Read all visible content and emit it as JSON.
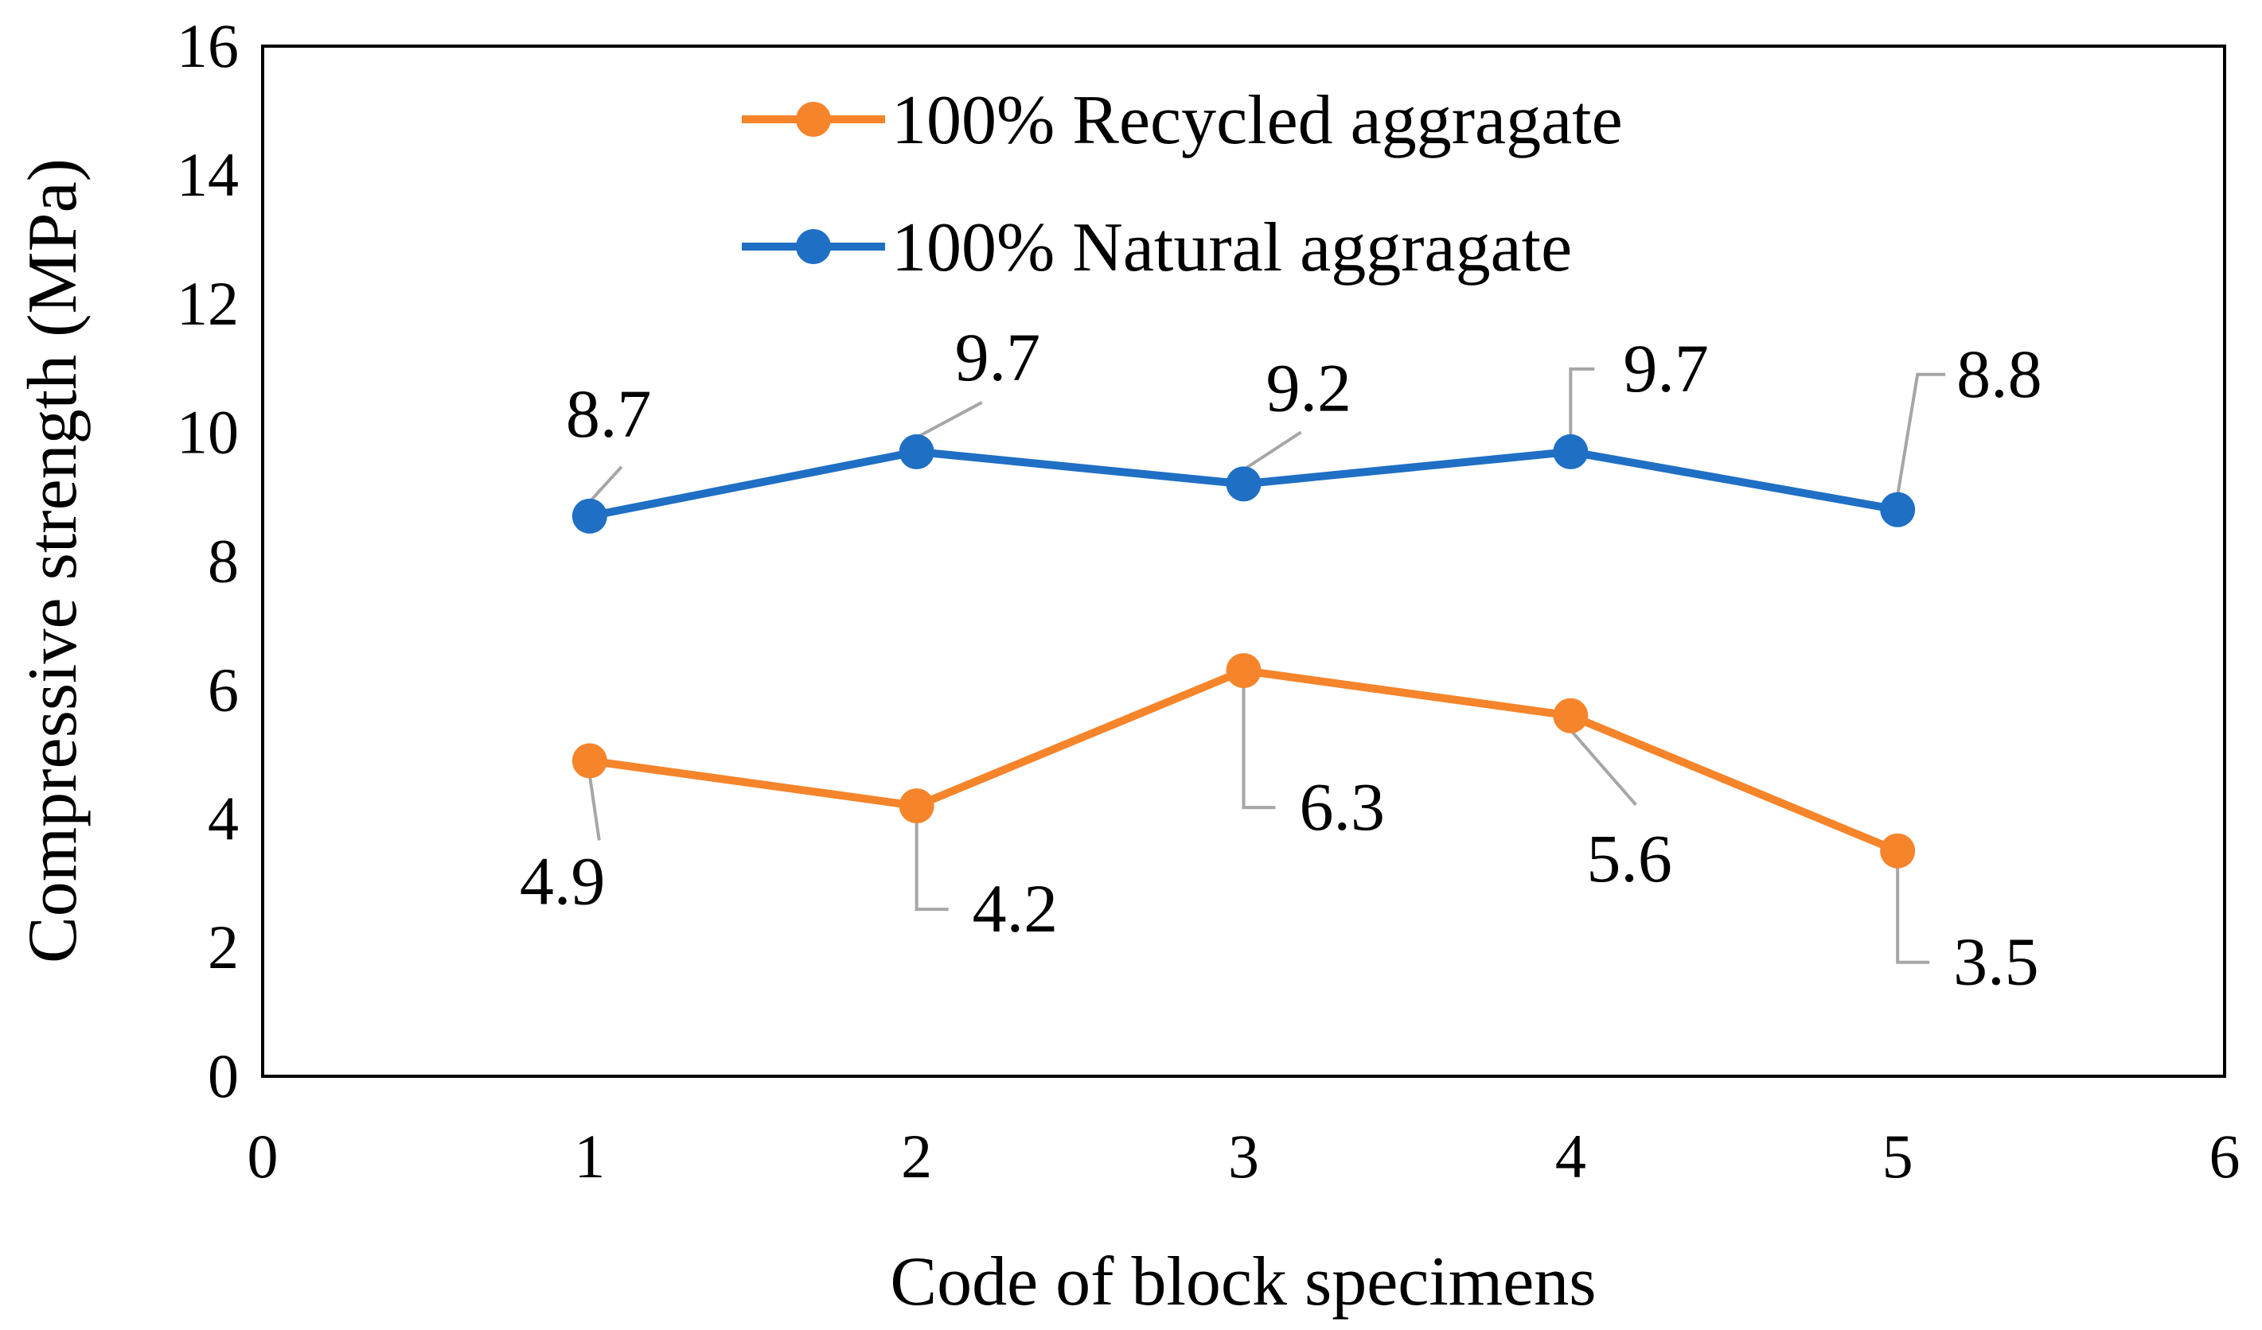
{
  "chart_data": {
    "type": "line",
    "title": "",
    "xlabel": "Code of block specimens",
    "ylabel": "Compressive strength (MPa)",
    "xlim": [
      0,
      6
    ],
    "ylim": [
      0,
      16
    ],
    "xticks": [
      0,
      1,
      2,
      3,
      4,
      5,
      6
    ],
    "yticks": [
      0,
      2,
      4,
      6,
      8,
      10,
      12,
      14,
      16
    ],
    "grid": false,
    "legend_position": "top-center",
    "x": [
      1,
      2,
      3,
      4,
      5
    ],
    "series": [
      {
        "name": "100% Recycled aggragate",
        "color": "#F5842B",
        "values": [
          4.9,
          4.2,
          6.3,
          5.6,
          3.5
        ],
        "labels": [
          "4.9",
          "4.2",
          "6.3",
          "5.6",
          "3.5"
        ]
      },
      {
        "name": "100% Natural aggragate",
        "color": "#1F6FC4",
        "values": [
          8.7,
          9.7,
          9.2,
          9.7,
          8.8
        ],
        "labels": [
          "8.7",
          "9.7",
          "9.2",
          "9.7",
          "8.8"
        ]
      }
    ],
    "leader_color": "#A6A6A6"
  }
}
